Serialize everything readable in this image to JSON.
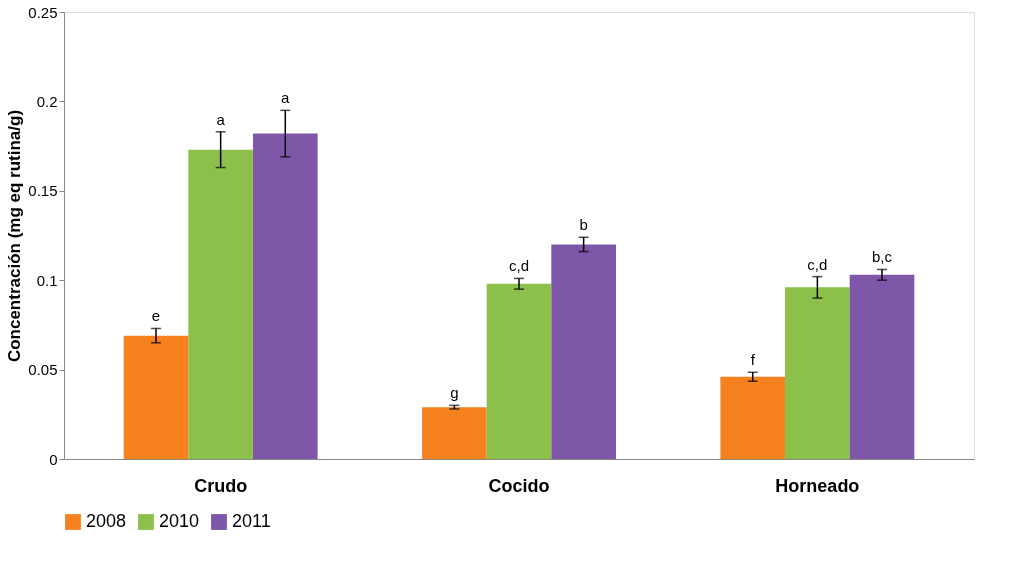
{
  "chart_data": {
    "type": "bar",
    "ylabel": "Concentración (mg eq rutina/g)",
    "categories": [
      "Crudo",
      "Cocido",
      "Horneado"
    ],
    "series": [
      {
        "name": "2008",
        "color": "#f5821f",
        "values": [
          0.069,
          0.029,
          0.046
        ],
        "errors": [
          0.004,
          0.001,
          0.0025
        ]
      },
      {
        "name": "2010",
        "color": "#8dc04b",
        "values": [
          0.173,
          0.098,
          0.096
        ],
        "errors": [
          0.01,
          0.003,
          0.006
        ]
      },
      {
        "name": "2011",
        "color": "#7e57a8",
        "values": [
          0.182,
          0.12,
          0.103
        ],
        "errors": [
          0.013,
          0.004,
          0.003
        ]
      }
    ],
    "annotations": [
      "e",
      "a",
      "a",
      "g",
      "c,d",
      "b",
      "f",
      "c,d",
      "b,c"
    ],
    "ylim": [
      0,
      0.25
    ],
    "yticks": [
      0,
      0.05,
      0.1,
      0.15,
      0.2,
      0.25
    ],
    "grid": false,
    "legend": "bottom"
  }
}
